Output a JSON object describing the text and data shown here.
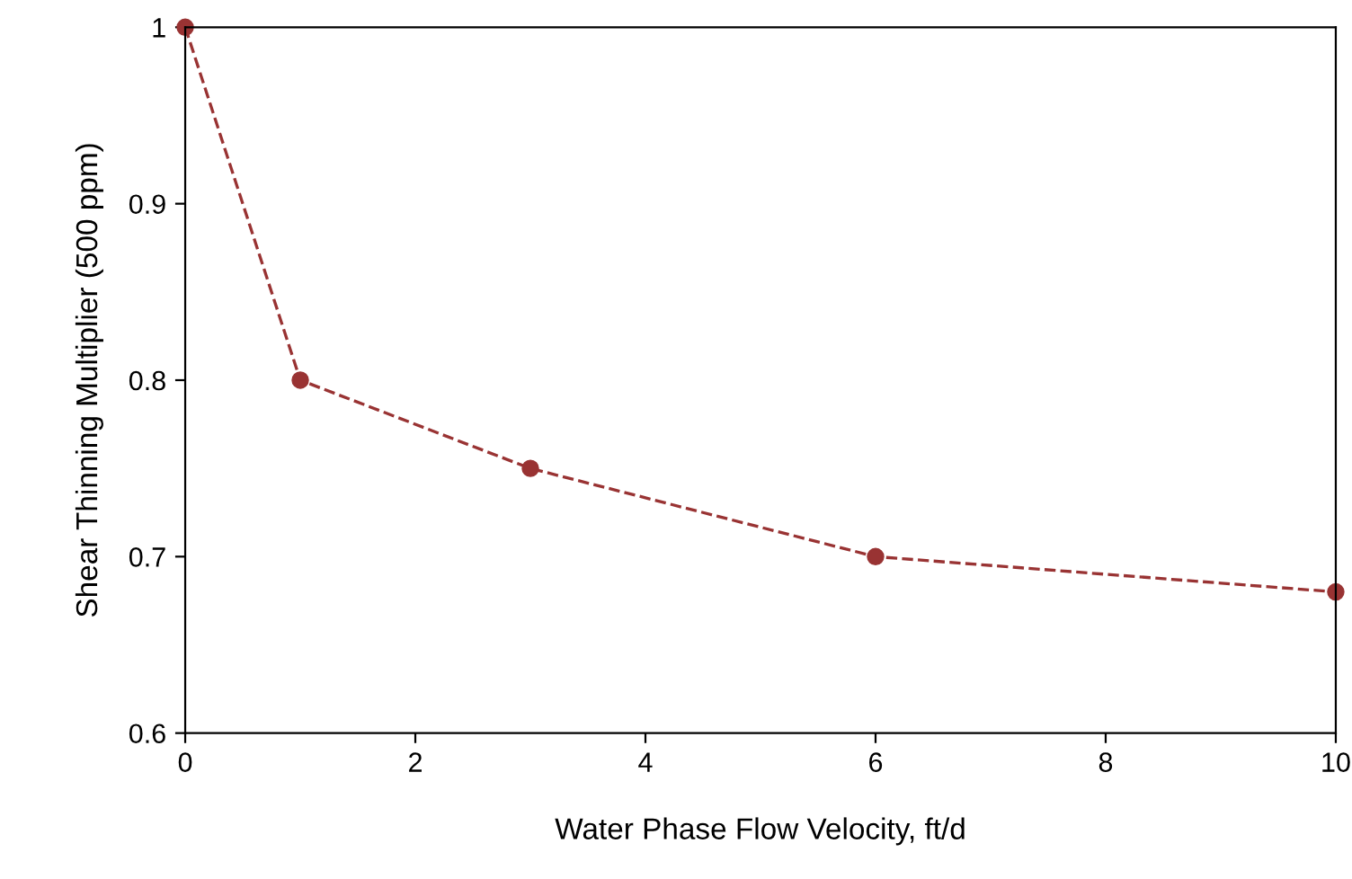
{
  "chart_data": {
    "type": "line",
    "xlabel": "Water Phase Flow Velocity, ft/d",
    "ylabel": "Shear Thinning Multiplier (500 ppm)",
    "x": [
      0,
      1,
      3,
      6,
      10
    ],
    "series": [
      {
        "color": "#993333",
        "values": [
          1,
          0.8,
          0.75,
          0.7,
          0.68
        ]
      }
    ],
    "xlim": [
      0,
      10
    ],
    "xticks": [
      0,
      2,
      4,
      6,
      8,
      10
    ],
    "ylim": [
      0.6,
      1
    ],
    "yticks": [
      0.6,
      0.7,
      0.8,
      0.9,
      1
    ],
    "marker": "circle",
    "line_style": "dashed",
    "grid": false,
    "legend": false
  }
}
